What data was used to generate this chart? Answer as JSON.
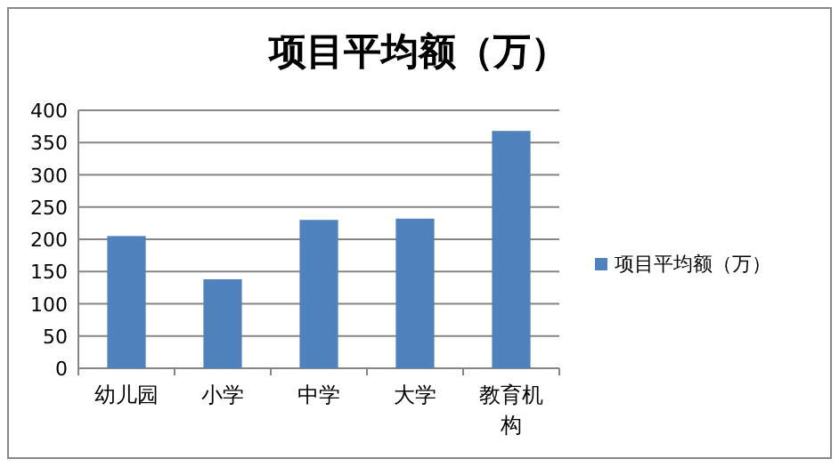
{
  "chart_data": {
    "type": "bar",
    "title": "项目平均额（万）",
    "categories": [
      "幼儿园",
      "小学",
      "中学",
      "大学",
      "教育机构"
    ],
    "series": [
      {
        "name": "项目平均额（万）",
        "color": "#4f81bd",
        "values": [
          205,
          138,
          230,
          232,
          368
        ]
      }
    ],
    "ylim": [
      0,
      400
    ],
    "yticks": [
      0,
      50,
      100,
      150,
      200,
      250,
      300,
      350,
      400
    ],
    "grid": "y",
    "legend": "right"
  }
}
